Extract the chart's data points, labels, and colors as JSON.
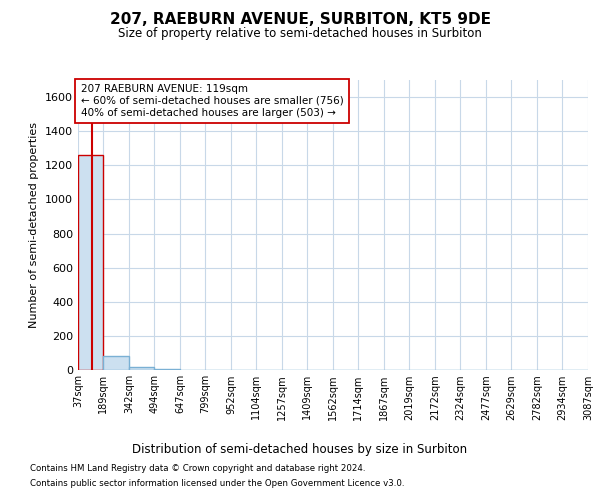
{
  "title": "207, RAEBURN AVENUE, SURBITON, KT5 9DE",
  "subtitle": "Size of property relative to semi-detached houses in Surbiton",
  "xlabel": "Distribution of semi-detached houses by size in Surbiton",
  "ylabel": "Number of semi-detached properties",
  "footnote1": "Contains HM Land Registry data © Crown copyright and database right 2024.",
  "footnote2": "Contains public sector information licensed under the Open Government Licence v3.0.",
  "annotation_line1": "207 RAEBURN AVENUE: 119sqm",
  "annotation_line2": "← 60% of semi-detached houses are smaller (756)",
  "annotation_line3": "40% of semi-detached houses are larger (503) →",
  "property_size": 119,
  "highlight_bin_index": 0,
  "bar_color": "#cce0f0",
  "bar_edge_color": "#7ab0d4",
  "highlight_bar_edge_color": "#cc0000",
  "red_line_color": "#cc0000",
  "annotation_box_edge_color": "#cc0000",
  "annotation_box_face_color": "#ffffff",
  "grid_color": "#c8d8e8",
  "background_color": "#ffffff",
  "ylim": [
    0,
    1700
  ],
  "yticks": [
    0,
    200,
    400,
    600,
    800,
    1000,
    1200,
    1400,
    1600
  ],
  "bin_edges": [
    37,
    189,
    342,
    494,
    647,
    799,
    952,
    1104,
    1257,
    1409,
    1562,
    1714,
    1867,
    2019,
    2172,
    2324,
    2477,
    2629,
    2782,
    2934,
    3087
  ],
  "bin_labels": [
    "37sqm",
    "189sqm",
    "342sqm",
    "494sqm",
    "647sqm",
    "799sqm",
    "952sqm",
    "1104sqm",
    "1257sqm",
    "1409sqm",
    "1562sqm",
    "1714sqm",
    "1867sqm",
    "2019sqm",
    "2172sqm",
    "2324sqm",
    "2477sqm",
    "2629sqm",
    "2782sqm",
    "2934sqm",
    "3087sqm"
  ],
  "bar_heights": [
    1259,
    85,
    15,
    3,
    1,
    0,
    0,
    0,
    0,
    0,
    0,
    0,
    0,
    0,
    0,
    0,
    0,
    0,
    0,
    0
  ]
}
